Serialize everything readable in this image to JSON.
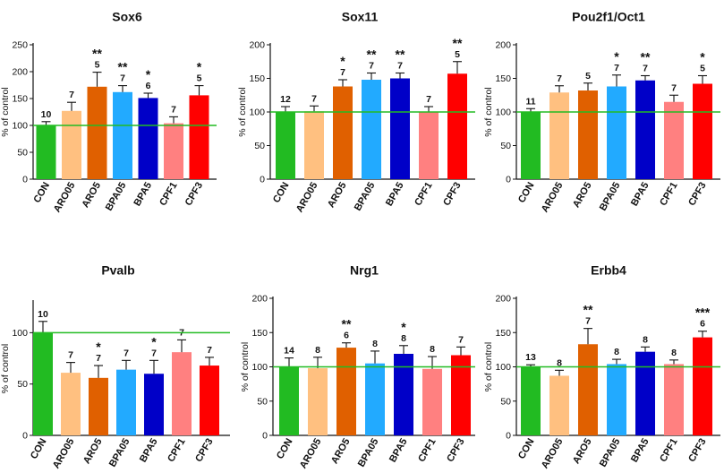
{
  "chart_data": [
    {
      "type": "bar",
      "title": "Sox6",
      "ylabel": "% of control",
      "ylim": [
        0,
        250
      ],
      "ticks": [
        0,
        50,
        100,
        150,
        200,
        250
      ],
      "reference_line": 100,
      "categories": [
        "CON",
        "ARO05",
        "ARO5",
        "BPA05",
        "BPA5",
        "CPF1",
        "CPF3"
      ],
      "values": [
        100,
        127,
        172,
        162,
        151,
        104,
        156
      ],
      "errors": [
        7,
        16,
        27,
        12,
        9,
        12,
        18
      ],
      "n": [
        "10",
        "7",
        "5",
        "7",
        "6",
        "7",
        "5"
      ],
      "significance": [
        "",
        "",
        "**",
        "**",
        "*",
        "",
        "*"
      ]
    },
    {
      "type": "bar",
      "title": "Sox11",
      "ylabel": "% of control",
      "ylim": [
        0,
        200
      ],
      "ticks": [
        0,
        50,
        100,
        150,
        200
      ],
      "reference_line": 100,
      "categories": [
        "CON",
        "ARO05",
        "ARO5",
        "BPA05",
        "BPA5",
        "CPF1",
        "CPF3"
      ],
      "values": [
        100,
        101,
        138,
        148,
        150,
        100,
        157
      ],
      "errors": [
        8,
        8,
        10,
        10,
        8,
        8,
        18
      ],
      "n": [
        "12",
        "7",
        "7",
        "7",
        "7",
        "7",
        "5"
      ],
      "significance": [
        "",
        "",
        "*",
        "**",
        "**",
        "",
        "**"
      ]
    },
    {
      "type": "bar",
      "title": "Pou2f1/Oct1",
      "ylabel": "% of control",
      "ylim": [
        0,
        200
      ],
      "ticks": [
        0,
        50,
        100,
        150,
        200
      ],
      "reference_line": 100,
      "categories": [
        "CON",
        "ARO05",
        "ARO5",
        "BPA05",
        "BPA5",
        "CPF1",
        "CPF3"
      ],
      "values": [
        100,
        129,
        132,
        138,
        147,
        115,
        142
      ],
      "errors": [
        5,
        10,
        11,
        17,
        7,
        10,
        12
      ],
      "n": [
        "11",
        "7",
        "5",
        "7",
        "7",
        "7",
        "5"
      ],
      "significance": [
        "",
        "",
        "",
        "*",
        "**",
        "",
        "*"
      ]
    },
    {
      "type": "bar",
      "title": "Pvalb",
      "ylabel": "% of control",
      "ylim": [
        0,
        130
      ],
      "ticks": [
        0,
        50,
        100
      ],
      "reference_line": 100,
      "categories": [
        "CON",
        "ARO05",
        "ARO5",
        "BPA05",
        "BPA5",
        "CPF1",
        "CPF3"
      ],
      "values": [
        100,
        61,
        56,
        64,
        60,
        81,
        68
      ],
      "errors": [
        11,
        10,
        12,
        9,
        13,
        12,
        8
      ],
      "n": [
        "10",
        "7",
        "7",
        "7",
        "7",
        "7",
        "7"
      ],
      "significance": [
        "",
        "",
        "*",
        "",
        "*",
        "",
        ""
      ]
    },
    {
      "type": "bar",
      "title": "Nrg1",
      "ylabel": "% of control",
      "ylim": [
        0,
        200
      ],
      "ticks": [
        0,
        50,
        100,
        150,
        200
      ],
      "reference_line": 100,
      "categories": [
        "CON",
        "ARO05",
        "ARO5",
        "BPA05",
        "BPA5",
        "CPF1",
        "CPF3"
      ],
      "values": [
        100,
        98,
        128,
        105,
        119,
        97,
        117
      ],
      "errors": [
        13,
        16,
        7,
        18,
        12,
        18,
        12
      ],
      "n": [
        "14",
        "8",
        "6",
        "8",
        "8",
        "8",
        "7"
      ],
      "significance": [
        "",
        "",
        "**",
        "",
        "*",
        "",
        ""
      ]
    },
    {
      "type": "bar",
      "title": "Erbb4",
      "ylabel": "% of control",
      "ylim": [
        0,
        200
      ],
      "ticks": [
        0,
        50,
        100,
        150,
        200
      ],
      "reference_line": 100,
      "categories": [
        "CON",
        "ARO05",
        "ARO5",
        "BPA05",
        "BPA5",
        "CPF1",
        "CPF3"
      ],
      "values": [
        100,
        87,
        133,
        104,
        122,
        104,
        143
      ],
      "errors": [
        3,
        8,
        23,
        7,
        7,
        6,
        9
      ],
      "n": [
        "13",
        "8",
        "7",
        "8",
        "8",
        "8",
        "6"
      ],
      "significance": [
        "",
        "",
        "**",
        "",
        "",
        "",
        "***"
      ]
    }
  ],
  "colors": {
    "bars": [
      "#22bb22",
      "#ffc080",
      "#e06000",
      "#22aaff",
      "#0000c8",
      "#ff8080",
      "#ff0000"
    ],
    "reference_line": "#22bb22",
    "axis": "#111111"
  }
}
